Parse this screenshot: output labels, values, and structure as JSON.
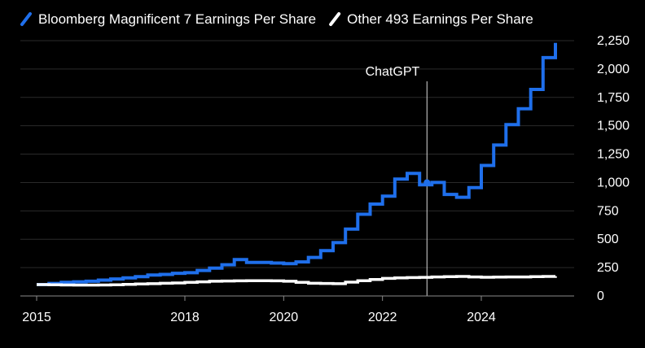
{
  "chart_data": {
    "type": "line",
    "title": "",
    "xlabel": "",
    "ylabel": "",
    "xlim": [
      2015,
      2025.5
    ],
    "ylim": [
      0,
      2250
    ],
    "y_ticks": [
      0,
      250,
      500,
      750,
      1000,
      1250,
      1500,
      1750,
      2000,
      2250
    ],
    "y_tick_labels": [
      "0",
      "250",
      "500",
      "750",
      "1,000",
      "1,250",
      "1,500",
      "1,750",
      "2,000",
      "2,250"
    ],
    "x_ticks": [
      2015,
      2018,
      2020,
      2022,
      2024
    ],
    "x_tick_labels": [
      "2015",
      "2018",
      "2020",
      "2022",
      "2024"
    ],
    "grid": "horizontal",
    "legend_position": "top-left",
    "step_lines": true,
    "annotation": {
      "label": "ChatGPT",
      "x": 2022.9,
      "marker_y": 1000
    },
    "colors": {
      "background": "#000000",
      "grid": "#2a2a2a",
      "series_1": "#1f6feb",
      "series_2": "#ffffff"
    },
    "series": [
      {
        "name": "Bloomberg Magnificent 7 Earnings Per Share",
        "x": [
          2015.0,
          2015.25,
          2015.5,
          2015.75,
          2016.0,
          2016.25,
          2016.5,
          2016.75,
          2017.0,
          2017.25,
          2017.5,
          2017.75,
          2018.0,
          2018.25,
          2018.5,
          2018.75,
          2019.0,
          2019.25,
          2019.5,
          2019.75,
          2020.0,
          2020.25,
          2020.5,
          2020.75,
          2021.0,
          2021.25,
          2021.5,
          2021.75,
          2022.0,
          2022.25,
          2022.5,
          2022.75,
          2023.0,
          2023.25,
          2023.5,
          2023.75,
          2024.0,
          2024.25,
          2024.5,
          2024.75,
          2025.0,
          2025.25,
          2025.5
        ],
        "values": [
          100,
          110,
          120,
          125,
          130,
          140,
          150,
          160,
          170,
          185,
          190,
          200,
          205,
          225,
          245,
          275,
          320,
          295,
          295,
          290,
          285,
          300,
          340,
          400,
          470,
          590,
          720,
          810,
          880,
          1030,
          1080,
          980,
          1000,
          895,
          870,
          955,
          1150,
          1330,
          1510,
          1650,
          1820,
          2100,
          2230
        ]
      },
      {
        "name": "Other 493 Earnings Per Share",
        "x": [
          2015.0,
          2015.25,
          2015.5,
          2015.75,
          2016.0,
          2016.25,
          2016.5,
          2016.75,
          2017.0,
          2017.25,
          2017.5,
          2017.75,
          2018.0,
          2018.25,
          2018.5,
          2018.75,
          2019.0,
          2019.25,
          2019.5,
          2019.75,
          2020.0,
          2020.25,
          2020.5,
          2020.75,
          2021.0,
          2021.25,
          2021.5,
          2021.75,
          2022.0,
          2022.25,
          2022.5,
          2022.75,
          2023.0,
          2023.25,
          2023.5,
          2023.75,
          2024.0,
          2024.25,
          2024.5,
          2024.75,
          2025.0,
          2025.25,
          2025.5
        ],
        "values": [
          100,
          98,
          97,
          96,
          96,
          97,
          99,
          102,
          105,
          108,
          112,
          115,
          120,
          125,
          130,
          132,
          133,
          134,
          134,
          133,
          130,
          120,
          112,
          110,
          108,
          122,
          135,
          145,
          155,
          160,
          162,
          164,
          168,
          170,
          172,
          168,
          165,
          166,
          168,
          168,
          170,
          172,
          175
        ]
      }
    ]
  }
}
